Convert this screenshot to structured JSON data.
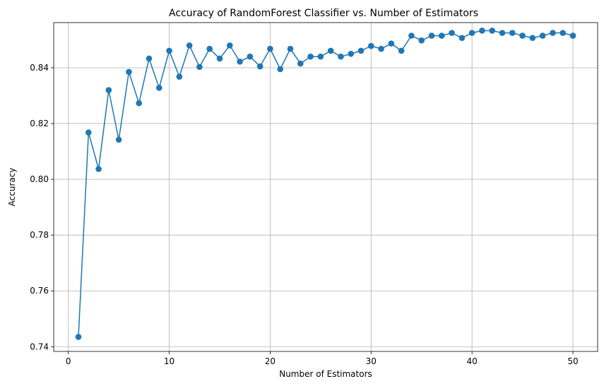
{
  "chart_data": {
    "type": "line",
    "title": "Accuracy of RandomForest Classifier vs. Number of Estimators",
    "xlabel": "Number of Estimators",
    "ylabel": "Accuracy",
    "xlim": [
      -1.45,
      52.45
    ],
    "ylim": [
      0.7383,
      0.8562
    ],
    "xticks": [
      0,
      10,
      20,
      30,
      40,
      50
    ],
    "yticks": [
      0.74,
      0.76,
      0.78,
      0.8,
      0.82,
      0.84
    ],
    "ytick_labels": [
      "0.74",
      "0.76",
      "0.78",
      "0.80",
      "0.82",
      "0.84"
    ],
    "grid": true,
    "marker": "circle",
    "color": "#1f77b4",
    "series": [
      {
        "x": [
          1,
          2,
          3,
          4,
          5,
          6,
          7,
          8,
          9,
          10,
          11,
          12,
          13,
          14,
          15,
          16,
          17,
          18,
          19,
          20,
          21,
          22,
          23,
          24,
          25,
          26,
          27,
          28,
          29,
          30,
          31,
          32,
          33,
          34,
          35,
          36,
          37,
          38,
          39,
          40,
          41,
          42,
          43,
          44,
          45,
          46,
          47,
          48,
          49,
          50
        ],
        "values": [
          0.7435,
          0.8168,
          0.8037,
          0.832,
          0.8142,
          0.8385,
          0.8273,
          0.8433,
          0.8328,
          0.8461,
          0.8368,
          0.848,
          0.8403,
          0.8468,
          0.8433,
          0.848,
          0.8422,
          0.844,
          0.8405,
          0.8468,
          0.8395,
          0.8468,
          0.8415,
          0.844,
          0.844,
          0.8461,
          0.844,
          0.845,
          0.8461,
          0.8478,
          0.8468,
          0.8487,
          0.8461,
          0.8515,
          0.8498,
          0.8515,
          0.8515,
          0.8525,
          0.8507,
          0.8525,
          0.8533,
          0.8533,
          0.8525,
          0.8525,
          0.8515,
          0.8507,
          0.8515,
          0.8525,
          0.8525,
          0.8515
        ]
      }
    ]
  }
}
